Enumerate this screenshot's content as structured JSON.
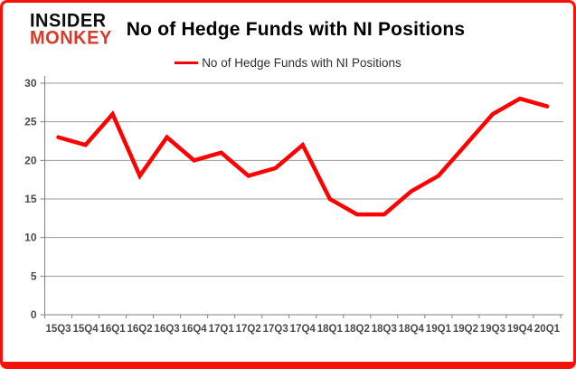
{
  "branding": {
    "logo_line1": "INSIDER",
    "logo_line2": "MONKEY",
    "logo_color_top": "#0d0d0d",
    "logo_color_bottom": "#d93a2b"
  },
  "header": {
    "title": "No of Hedge Funds with NI Positions"
  },
  "legend": {
    "label": "No of Hedge Funds with NI Positions",
    "line_color": "#ff0000"
  },
  "chart_data": {
    "type": "line",
    "title": "No of Hedge Funds with NI Positions",
    "categories": [
      "15Q3",
      "15Q4",
      "16Q1",
      "16Q2",
      "16Q3",
      "16Q4",
      "17Q1",
      "17Q2",
      "17Q3",
      "17Q4",
      "18Q1",
      "18Q2",
      "18Q3",
      "18Q4",
      "19Q1",
      "19Q2",
      "19Q3",
      "19Q4",
      "20Q1"
    ],
    "series": [
      {
        "name": "No of Hedge Funds with NI Positions",
        "color": "#ff0000",
        "values": [
          23,
          22,
          26,
          18,
          23,
          20,
          21,
          18,
          19,
          22,
          15,
          13,
          13,
          16,
          18,
          22,
          26,
          28,
          27
        ]
      }
    ],
    "xlabel": "",
    "ylabel": "",
    "ylim": [
      0,
      30
    ],
    "ytick_step": 5,
    "yticks": [
      0,
      5,
      10,
      15,
      20,
      25,
      30
    ],
    "grid": true,
    "legend_position": "top-center",
    "colors": {
      "gridline": "#9b9b9b",
      "axis": "#808080",
      "tick_label": "#4a4a4a"
    }
  }
}
